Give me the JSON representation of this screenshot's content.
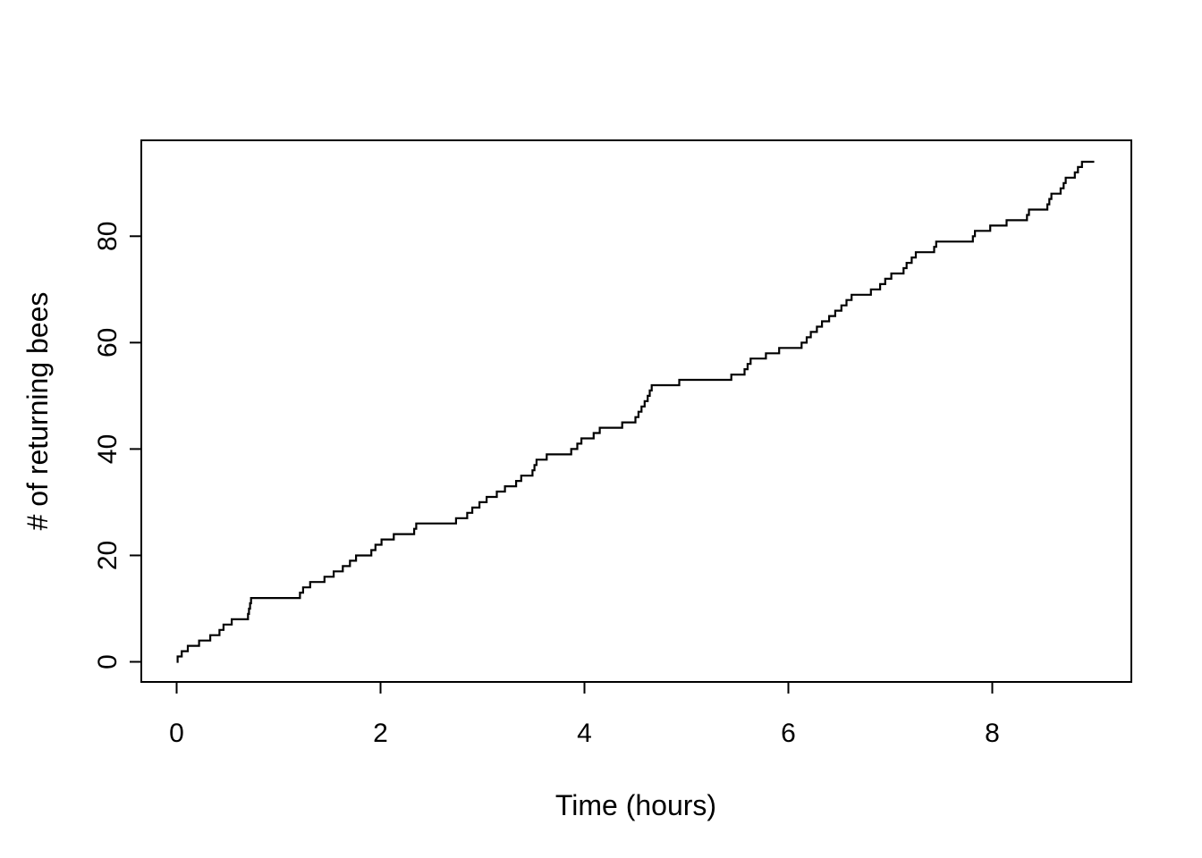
{
  "figure": {
    "background_color": "#ffffff",
    "line_color": "#000000"
  },
  "chart_data": {
    "type": "line",
    "subtype": "step-cumulative",
    "title": "",
    "xlabel": "Time (hours)",
    "ylabel": "# of returning bees",
    "x_ticks": [
      0,
      2,
      4,
      6,
      8
    ],
    "y_ticks": [
      0,
      20,
      40,
      60,
      80
    ],
    "xlim": [
      0,
      9
    ],
    "ylim": [
      0,
      94
    ],
    "grid": false,
    "legend_position": "none",
    "description": "Cumulative count of returning bees over time; the line steps up by one at each bee-return event and is flat between events.",
    "start_time": 0.0,
    "end_time": 9.0,
    "final_count": 94,
    "event_times": [
      0.01,
      0.05,
      0.11,
      0.22,
      0.33,
      0.42,
      0.46,
      0.54,
      0.7,
      0.71,
      0.72,
      0.73,
      1.21,
      1.24,
      1.31,
      1.45,
      1.54,
      1.63,
      1.7,
      1.76,
      1.91,
      1.95,
      2.01,
      2.13,
      2.33,
      2.35,
      2.74,
      2.85,
      2.9,
      2.97,
      3.04,
      3.14,
      3.22,
      3.33,
      3.38,
      3.49,
      3.51,
      3.53,
      3.63,
      3.87,
      3.93,
      3.97,
      4.09,
      4.15,
      4.37,
      4.5,
      4.53,
      4.56,
      4.59,
      4.62,
      4.64,
      4.66,
      4.93,
      5.44,
      5.57,
      5.6,
      5.63,
      5.78,
      5.91,
      6.13,
      6.18,
      6.22,
      6.28,
      6.33,
      6.4,
      6.46,
      6.52,
      6.57,
      6.62,
      6.81,
      6.9,
      6.95,
      7.01,
      7.13,
      7.16,
      7.21,
      7.25,
      7.43,
      7.45,
      7.81,
      7.83,
      7.98,
      8.14,
      8.34,
      8.36,
      8.54,
      8.56,
      8.58,
      8.67,
      8.7,
      8.72,
      8.81,
      8.84,
      8.88
    ]
  }
}
